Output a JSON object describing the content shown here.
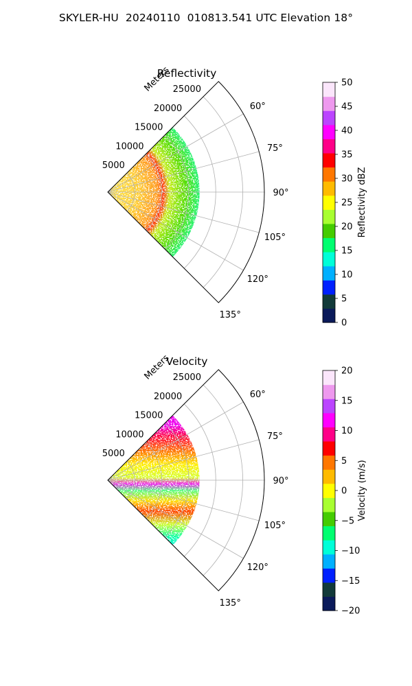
{
  "figure": {
    "title": "SKYLER-HU  20240110  010813.541 UTC Elevation 18°"
  },
  "chart_data": [
    {
      "type": "heatmap",
      "subtype": "polar-sector-radar-ppi",
      "title": "Reflectivity",
      "radial_axis_label": "Meters",
      "r_ticks": [
        5000,
        10000,
        15000,
        20000,
        25000
      ],
      "r_tick_labels": [
        "5000",
        "10000",
        "15000",
        "20000",
        "25000"
      ],
      "rlim": [
        0,
        29000
      ],
      "theta_range_deg": [
        45,
        135
      ],
      "theta_direction": "clockwise-from-north",
      "theta_ticks": [
        60,
        75,
        90,
        105,
        120,
        135
      ],
      "theta_tick_labels": [
        "60°",
        "75°",
        "90°",
        "105°",
        "120°",
        "135°"
      ],
      "grid": true,
      "colorbar": {
        "label": "Reflectivity dBZ",
        "range": [
          0,
          50
        ],
        "ticks": [
          0,
          5,
          10,
          15,
          20,
          25,
          30,
          35,
          40,
          45,
          50
        ],
        "tick_labels": [
          "0",
          "5",
          "10",
          "15",
          "20",
          "25",
          "30",
          "35",
          "40",
          "45",
          "50"
        ],
        "colorscale": [
          "#0a1a5a",
          "#123a3a",
          "#0020ff",
          "#00b0ff",
          "#00ffd8",
          "#00ff70",
          "#44cc00",
          "#a8ff30",
          "#ffff00",
          "#ffbb00",
          "#ff7700",
          "#ff0000",
          "#ff0088",
          "#ff00ff",
          "#bb44ff",
          "#ee99ee",
          "#fbe6fb"
        ]
      },
      "data_extent_m": [
        0,
        17000
      ],
      "field_description": [
        {
          "r": [
            0,
            5000
          ],
          "value_dbz": 26
        },
        {
          "r": [
            5000,
            11000
          ],
          "value_dbz": 32
        },
        {
          "r": [
            11000,
            17000
          ],
          "value_dbz": 17
        }
      ]
    },
    {
      "type": "heatmap",
      "subtype": "polar-sector-radar-ppi",
      "title": "Velocity",
      "radial_axis_label": "Meters",
      "r_ticks": [
        5000,
        10000,
        15000,
        20000,
        25000
      ],
      "r_tick_labels": [
        "5000",
        "10000",
        "15000",
        "20000",
        "25000"
      ],
      "rlim": [
        0,
        29000
      ],
      "theta_range_deg": [
        45,
        135
      ],
      "theta_direction": "clockwise-from-north",
      "theta_ticks": [
        60,
        75,
        90,
        105,
        120,
        135
      ],
      "theta_tick_labels": [
        "60°",
        "75°",
        "90°",
        "105°",
        "120°",
        "135°"
      ],
      "grid": true,
      "colorbar": {
        "label": "Velocity (m/s)",
        "range": [
          -20,
          20
        ],
        "ticks": [
          -20,
          -15,
          -10,
          -5,
          0,
          5,
          10,
          15,
          20
        ],
        "tick_labels": [
          "−20",
          "−15",
          "−10",
          "−5",
          "0",
          "5",
          "10",
          "15",
          "20"
        ],
        "colorscale": [
          "#0a1a5a",
          "#123a3a",
          "#0020ff",
          "#00b0ff",
          "#00ffd8",
          "#00ff70",
          "#44cc00",
          "#a8ff30",
          "#ffff00",
          "#ffbb00",
          "#ff7700",
          "#ff0000",
          "#ff0088",
          "#ff00ff",
          "#bb44ff",
          "#ee99ee",
          "#fbe6fb"
        ]
      },
      "data_extent_m": [
        0,
        17000
      ],
      "field_description": [
        {
          "theta": [
            45,
            75
          ],
          "value_ms": 13
        },
        {
          "theta": [
            75,
            90
          ],
          "value_ms": 5
        },
        {
          "theta": [
            90,
            100
          ],
          "value_ms": -2
        },
        {
          "theta": [
            100,
            115
          ],
          "value_ms": 8
        },
        {
          "theta": [
            115,
            135
          ],
          "value_ms": -12
        }
      ]
    }
  ]
}
